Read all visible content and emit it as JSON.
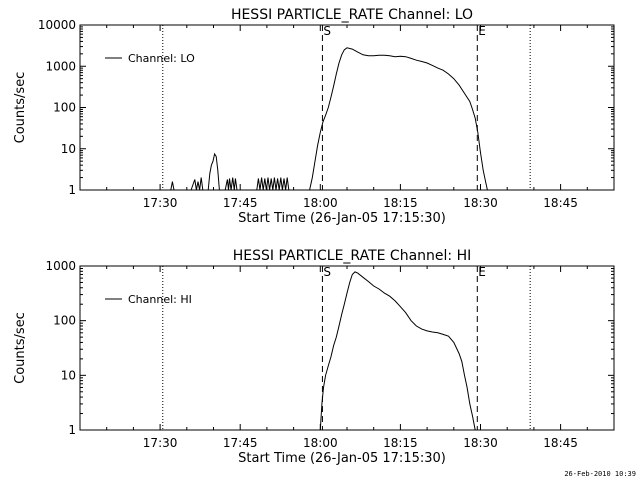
{
  "footer": {
    "timestamp": "26-Feb-2010 10:39"
  },
  "chart_data": [
    {
      "type": "line",
      "title": "HESSI PARTICLE_RATE Channel: LO",
      "xlabel": "Start Time (26-Jan-05 17:15:30)",
      "ylabel": "Counts/sec",
      "x_unit": "minutes since 17:15:30",
      "xlim": [
        0,
        100
      ],
      "ylim": [
        1,
        10000
      ],
      "yscale": "log",
      "xticks": [
        15,
        30,
        45,
        60,
        75,
        90
      ],
      "xtick_labels": [
        "17:30",
        "17:45",
        "18:00",
        "18:15",
        "18:30",
        "18:45"
      ],
      "yticks": [
        1,
        10,
        100,
        1000,
        10000
      ],
      "ytick_labels": [
        "1",
        "10",
        "100",
        "1000",
        "10000"
      ],
      "legend": {
        "label": "Channel: LO",
        "placement": "top-left"
      },
      "markers": [
        {
          "label": "S",
          "x": 45.4,
          "style": "dashed"
        },
        {
          "label": "E",
          "x": 74.4,
          "style": "dashed"
        }
      ],
      "vlines_dotted": [
        15.5,
        84.3
      ],
      "series": [
        {
          "name": "Channel: LO",
          "x": [
            17.0,
            17.3,
            17.6,
            20.8,
            21.2,
            21.5,
            21.8,
            22.1,
            22.4,
            22.7,
            23.0,
            24.0,
            24.3,
            24.6,
            24.9,
            25.2,
            25.5,
            25.8,
            26.1,
            27.2,
            27.6,
            27.8,
            28.0,
            28.3,
            28.6,
            28.9,
            29.1,
            29.4,
            33.1,
            33.4,
            33.7,
            34.0,
            34.3,
            34.6,
            34.9,
            35.2,
            35.5,
            35.8,
            36.1,
            36.4,
            36.7,
            37.0,
            37.3,
            37.6,
            37.9,
            38.2,
            38.5,
            38.8,
            39.1,
            39.4,
            43.0,
            43.5,
            44.0,
            44.5,
            45.0,
            45.5,
            46.0,
            46.5,
            47.0,
            47.5,
            48.0,
            48.5,
            49.0,
            49.5,
            50.0,
            51.0,
            52.0,
            53.0,
            54.0,
            55.0,
            56.0,
            57.0,
            58.0,
            59.0,
            60.0,
            61.0,
            62.0,
            63.0,
            64.0,
            65.0,
            66.0,
            67.0,
            68.0,
            69.0,
            70.0,
            71.0,
            72.0,
            73.0,
            73.5,
            74.0,
            74.5,
            75.0,
            75.5,
            76.0,
            76.3
          ],
          "y": [
            1,
            1.6,
            1,
            1,
            1.4,
            1.8,
            1,
            1.6,
            1,
            2.0,
            1,
            1,
            2.5,
            4.0,
            5.0,
            7.5,
            6.5,
            3.0,
            1,
            1,
            1.8,
            1,
            1.9,
            1,
            2.0,
            1,
            1.9,
            1,
            1,
            1.9,
            1,
            2.0,
            1,
            1.9,
            1,
            2.0,
            1,
            1.9,
            1,
            2.0,
            1,
            1.9,
            1,
            2.0,
            1,
            1.9,
            1,
            2.0,
            1,
            1,
            1,
            2,
            5,
            12,
            25,
            45,
            65,
            100,
            180,
            330,
            650,
            1200,
            1900,
            2500,
            2800,
            2600,
            2200,
            1900,
            1800,
            1800,
            1850,
            1850,
            1800,
            1700,
            1750,
            1700,
            1550,
            1400,
            1300,
            1200,
            1050,
            900,
            800,
            650,
            500,
            350,
            220,
            140,
            90,
            55,
            25,
            8,
            3,
            1.5,
            1
          ]
        }
      ]
    },
    {
      "type": "line",
      "title": "HESSI PARTICLE_RATE Channel: HI",
      "xlabel": "Start Time (26-Jan-05 17:15:30)",
      "ylabel": "Counts/sec",
      "x_unit": "minutes since 17:15:30",
      "xlim": [
        0,
        100
      ],
      "ylim": [
        1,
        1000
      ],
      "yscale": "log",
      "xticks": [
        15,
        30,
        45,
        60,
        75,
        90
      ],
      "xtick_labels": [
        "17:30",
        "17:45",
        "18:00",
        "18:15",
        "18:30",
        "18:45"
      ],
      "yticks": [
        1,
        10,
        100,
        1000
      ],
      "ytick_labels": [
        "1",
        "10",
        "100",
        "1000"
      ],
      "legend": {
        "label": "Channel: HI",
        "placement": "top-left"
      },
      "markers": [
        {
          "label": "S",
          "x": 45.4,
          "style": "dashed"
        },
        {
          "label": "E",
          "x": 74.4,
          "style": "dashed"
        }
      ],
      "vlines_dotted": [
        15.5,
        84.3
      ],
      "series": [
        {
          "name": "Channel: HI",
          "x": [
            45.0,
            45.3,
            45.6,
            46.0,
            46.5,
            47.0,
            47.5,
            48.0,
            48.5,
            49.0,
            49.5,
            50.0,
            50.5,
            51.0,
            51.5,
            52.0,
            53.0,
            54.0,
            55.0,
            56.0,
            57.0,
            58.0,
            59.0,
            60.0,
            61.0,
            62.0,
            63.0,
            64.0,
            65.0,
            66.0,
            67.0,
            68.0,
            69.0,
            70.0,
            71.0,
            71.5,
            72.0,
            72.5,
            73.0,
            73.5,
            74.0
          ],
          "y": [
            1,
            3,
            6,
            10,
            15,
            22,
            35,
            50,
            80,
            130,
            200,
            320,
            500,
            700,
            780,
            740,
            620,
            520,
            430,
            380,
            320,
            280,
            230,
            180,
            140,
            100,
            80,
            70,
            65,
            62,
            60,
            56,
            52,
            40,
            25,
            18,
            10,
            6,
            3,
            1.8,
            1
          ]
        }
      ]
    }
  ]
}
